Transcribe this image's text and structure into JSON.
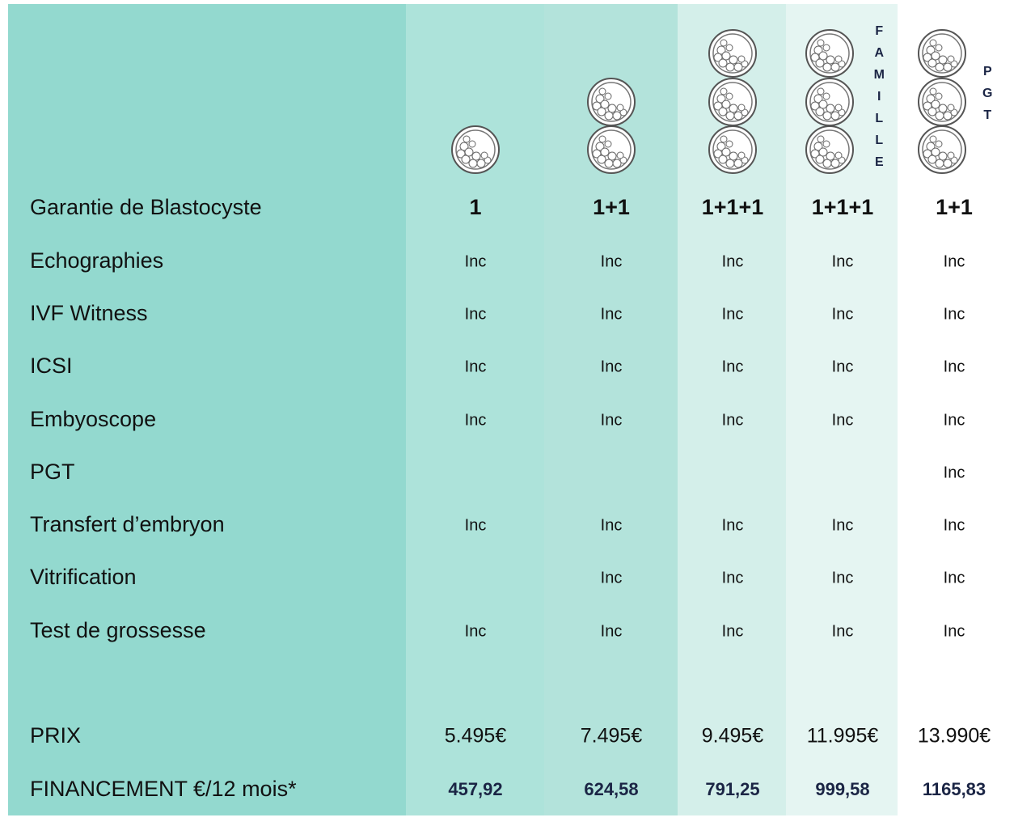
{
  "table": {
    "side_labels": {
      "famille": "FAMILLE",
      "pgt": "PGT"
    },
    "rows": [
      {
        "label": "Garantie de Blastocyste",
        "cells": [
          "1",
          "1+1",
          "1+1+1",
          "1+1+1",
          "1+1"
        ]
      },
      {
        "label": "Echographies",
        "cells": [
          "Inc",
          "Inc",
          "Inc",
          "Inc",
          "Inc"
        ]
      },
      {
        "label": "IVF Witness",
        "cells": [
          "Inc",
          "Inc",
          "Inc",
          "Inc",
          "Inc"
        ]
      },
      {
        "label": "ICSI",
        "cells": [
          "Inc",
          "Inc",
          "Inc",
          "Inc",
          "Inc"
        ]
      },
      {
        "label": "Embyoscope",
        "cells": [
          "Inc",
          "Inc",
          "Inc",
          "Inc",
          "Inc"
        ]
      },
      {
        "label": "PGT",
        "cells": [
          null,
          null,
          null,
          null,
          "Inc"
        ]
      },
      {
        "label": "Transfert d’embryon",
        "cells": [
          "Inc",
          "Inc",
          "Inc",
          "Inc",
          "Inc"
        ]
      },
      {
        "label": "Vitrification",
        "cells": [
          null,
          "Inc",
          "Inc",
          "Inc",
          "Inc"
        ]
      },
      {
        "label": "Test de grossesse",
        "cells": [
          "Inc",
          "Inc",
          "Inc",
          "Inc",
          "Inc"
        ]
      },
      {
        "label": "PRIX",
        "cells": [
          "5.495€",
          "7.495€",
          "9.495€",
          "11.995€",
          "13.990€"
        ]
      },
      {
        "label": "FINANCEMENT €/12 mois*",
        "cells": [
          "457,92",
          "624,58",
          "791,25",
          "999,58",
          "1165,83"
        ]
      }
    ]
  }
}
